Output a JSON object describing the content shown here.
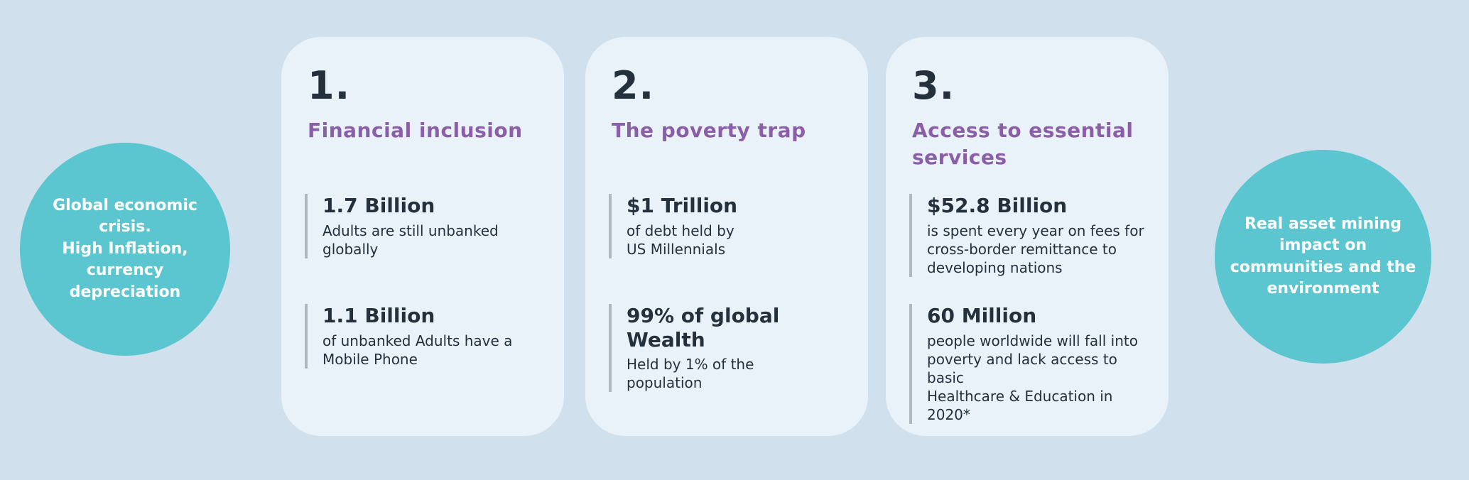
{
  "colors": {
    "background": "#d0e0ec",
    "card_bg": "#e9f2f9",
    "teal": "#5cc6d0",
    "purple": "#8b5fa7",
    "dark": "#24313d",
    "bar_gray": "#afb8be",
    "text_white": "#ffffff"
  },
  "left_circle": {
    "text": "Global economic\ncrisis.\nHigh Inflation,\ncurrency\ndepreciation"
  },
  "right_circle": {
    "text": "Real asset  mining\nimpact on\ncommunities and the\nenvironment"
  },
  "cards": [
    {
      "number": "1.",
      "title": "Financial inclusion",
      "stats": [
        {
          "value": "1.7 Billion",
          "description": "Adults are still unbanked\nglobally"
        },
        {
          "value": "1.1 Billion",
          "description": "of unbanked Adults have a\nMobile Phone"
        }
      ]
    },
    {
      "number": "2.",
      "title": "The poverty trap",
      "stats": [
        {
          "value": "$1 Trillion",
          "description": "of debt held by\nUS Millennials"
        },
        {
          "value": "99% of global Wealth",
          "description": "Held by 1% of the\npopulation"
        }
      ]
    },
    {
      "number": "3.",
      "title": "Access to essential\nservices",
      "stats": [
        {
          "value": "$52.8 Billion",
          "description": "is spent every year on fees for\ncross-border remittance to\ndeveloping nations"
        },
        {
          "value": "60 Million",
          "description": "people worldwide will fall into\npoverty and lack access to basic\nHealthcare & Education in 2020*"
        }
      ]
    }
  ]
}
